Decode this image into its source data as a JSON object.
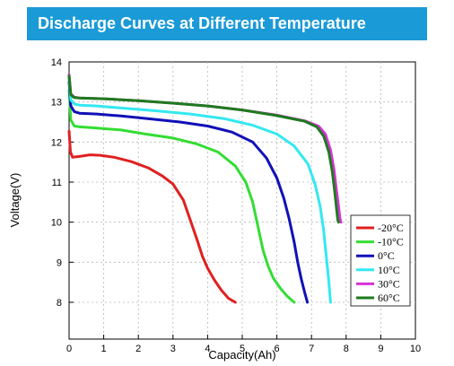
{
  "header": {
    "title": "Discharge Curves at Different Temperature",
    "background": "#1a9ad6"
  },
  "chart_data": {
    "type": "line",
    "title": "Discharge Curves at Different Temperature",
    "xlabel": "Capacity(Ah)",
    "ylabel": "Voltage(V)",
    "xlim": [
      0,
      10
    ],
    "ylim": [
      8,
      14
    ],
    "xticks": [
      0,
      1,
      2,
      3,
      4,
      5,
      6,
      7,
      8,
      9,
      10
    ],
    "yticks": [
      8,
      9,
      10,
      11,
      12,
      13,
      14
    ],
    "grid": true,
    "legend_position": "lower-right",
    "series": [
      {
        "name": "-20°C",
        "color": "#e02020",
        "x": [
          0,
          0.04,
          0.1,
          0.3,
          0.6,
          0.9,
          1.3,
          1.8,
          2.3,
          2.7,
          3.0,
          3.3,
          3.5,
          3.7,
          3.85,
          4.0,
          4.2,
          4.4,
          4.6,
          4.8
        ],
        "y": [
          12.27,
          11.75,
          11.62,
          11.64,
          11.68,
          11.67,
          11.62,
          11.51,
          11.35,
          11.15,
          10.95,
          10.55,
          10.05,
          9.55,
          9.15,
          8.85,
          8.55,
          8.3,
          8.1,
          8.0
        ]
      },
      {
        "name": "-10°C",
        "color": "#33dd33",
        "x": [
          0,
          0.05,
          0.15,
          0.3,
          0.8,
          1.5,
          2.2,
          3.0,
          3.7,
          4.3,
          4.8,
          5.1,
          5.3,
          5.45,
          5.6,
          5.75,
          5.9,
          6.1,
          6.3,
          6.5
        ],
        "y": [
          13.3,
          12.55,
          12.4,
          12.38,
          12.35,
          12.3,
          12.2,
          12.1,
          11.95,
          11.75,
          11.4,
          11.0,
          10.5,
          9.9,
          9.3,
          8.9,
          8.6,
          8.35,
          8.15,
          8.0
        ]
      },
      {
        "name": "0°C",
        "color": "#1010b8",
        "x": [
          0,
          0.05,
          0.15,
          0.3,
          0.8,
          1.5,
          2.3,
          3.2,
          4.0,
          4.7,
          5.3,
          5.7,
          6.0,
          6.2,
          6.35,
          6.5,
          6.6,
          6.7,
          6.8,
          6.88
        ],
        "y": [
          13.5,
          12.9,
          12.76,
          12.72,
          12.7,
          12.65,
          12.58,
          12.5,
          12.4,
          12.25,
          12.0,
          11.6,
          11.1,
          10.6,
          10.1,
          9.5,
          9.0,
          8.6,
          8.25,
          8.0
        ]
      },
      {
        "name": "10°C",
        "color": "#33e8f0",
        "x": [
          0,
          0.05,
          0.15,
          0.3,
          0.8,
          1.5,
          2.5,
          3.5,
          4.5,
          5.3,
          6.0,
          6.5,
          6.9,
          7.1,
          7.25,
          7.35,
          7.42,
          7.48,
          7.52,
          7.55
        ],
        "y": [
          13.6,
          13.05,
          12.95,
          12.92,
          12.9,
          12.85,
          12.78,
          12.7,
          12.58,
          12.42,
          12.2,
          11.9,
          11.45,
          10.95,
          10.4,
          9.8,
          9.2,
          8.7,
          8.3,
          8.0
        ]
      },
      {
        "name": "30°C",
        "color": "#d633d6",
        "x": [
          0,
          0.05,
          0.15,
          0.3,
          1.0,
          2.0,
          3.0,
          4.0,
          5.0,
          6.0,
          6.8,
          7.2,
          7.4,
          7.55,
          7.65,
          7.72,
          7.78,
          7.82,
          7.85
        ],
        "y": [
          13.68,
          13.2,
          13.12,
          13.1,
          13.08,
          13.03,
          12.97,
          12.9,
          12.8,
          12.67,
          12.53,
          12.4,
          12.2,
          11.8,
          11.3,
          10.8,
          10.4,
          10.1,
          10.0
        ]
      },
      {
        "name": "60°C",
        "color": "#1e7a1e",
        "x": [
          0,
          0.05,
          0.15,
          0.3,
          1.0,
          2.0,
          3.0,
          4.0,
          5.0,
          6.0,
          6.8,
          7.15,
          7.35,
          7.5,
          7.6,
          7.67,
          7.72,
          7.76,
          7.78
        ],
        "y": [
          13.65,
          13.18,
          13.11,
          13.1,
          13.08,
          13.03,
          12.97,
          12.9,
          12.8,
          12.66,
          12.52,
          12.38,
          12.15,
          11.75,
          11.25,
          10.75,
          10.35,
          10.05,
          10.0
        ]
      }
    ]
  }
}
